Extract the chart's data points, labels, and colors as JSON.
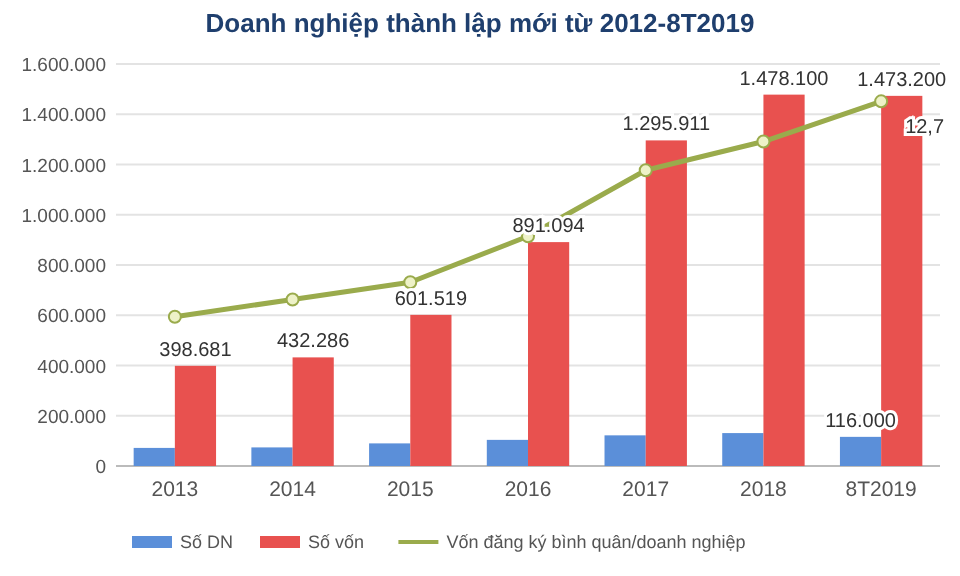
{
  "chart_data": {
    "type": "bar",
    "title": "Doanh nghiệp thành lập mới từ 2012-8T2019",
    "categories": [
      "2013",
      "2014",
      "2015",
      "2016",
      "2017",
      "2018",
      "8T2019"
    ],
    "series": [
      {
        "name": "Số DN",
        "color": "#5b8fd9",
        "values": [
          72000,
          74000,
          90000,
          104000,
          122000,
          131000,
          116000
        ],
        "value_labels": [
          null,
          null,
          null,
          null,
          null,
          null,
          "116.000"
        ]
      },
      {
        "name": "Số vốn",
        "color": "#e8514f",
        "values": [
          398681,
          432286,
          601519,
          891094,
          1295911,
          1478100,
          1473200
        ],
        "value_labels": [
          "398.681",
          "432.286",
          "601.519",
          "891.094",
          "1.295.911",
          "1.478.100",
          "1.473.200"
        ]
      },
      {
        "name": "Vốn đăng ký bình quân/doanh nghiệp",
        "type": "line",
        "axis": "y2",
        "color": "#9aab4c",
        "values": [
          5.2,
          5.8,
          6.4,
          8.0,
          10.3,
          11.3,
          12.7
        ],
        "value_labels": [
          null,
          null,
          null,
          null,
          null,
          null,
          "12,7"
        ]
      }
    ],
    "ylim": [
      0,
      1600000
    ],
    "yticks": [
      0,
      {
        "value": 200000,
        "label": "200.000"
      },
      {
        "value": 400000,
        "label": "400.000"
      },
      {
        "value": 600000,
        "label": "600.000"
      },
      {
        "value": 800000,
        "label": "800.000"
      },
      {
        "value": 1000000,
        "label": "1.000.000"
      },
      {
        "value": 1200000,
        "label": "1.200.000"
      },
      {
        "value": 1400000,
        "label": "1.400.000"
      },
      {
        "value": 1600000,
        "label": "1.600.000"
      }
    ],
    "y2lim": [
      0,
      14
    ],
    "grid": "y",
    "legend": "bottom",
    "marker": "circle"
  }
}
